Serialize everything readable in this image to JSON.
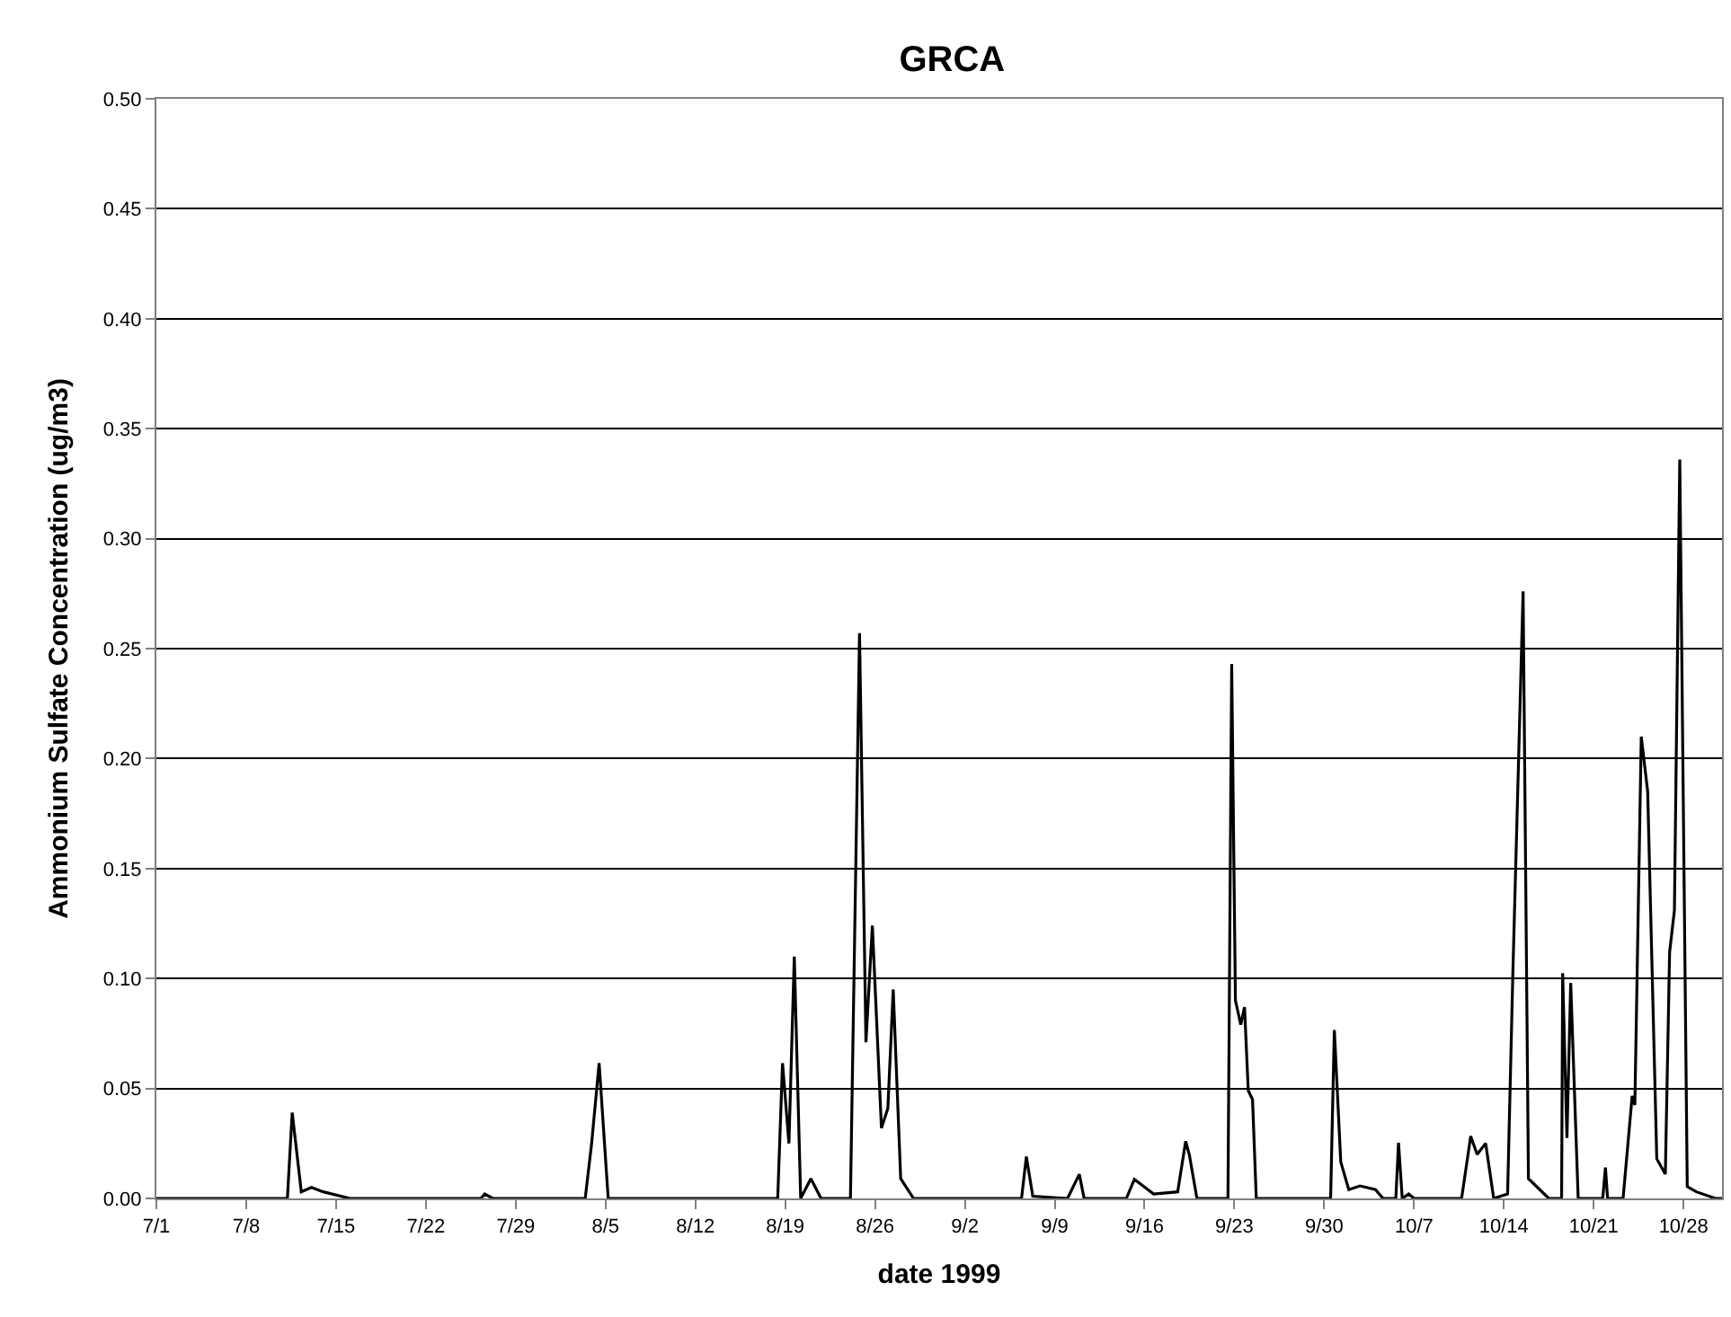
{
  "chart_data": {
    "type": "line",
    "title": "GRCA",
    "xlabel": "date 1999",
    "ylabel": "Ammonium Sulfate Concentration (ug/m3)",
    "x": [
      "1999-07-01T00:00",
      "1999-07-11T05:00",
      "1999-07-11T14:00",
      "1999-07-12T07:00",
      "1999-07-13T02:00",
      "1999-07-14T00:00",
      "1999-07-16T02:00",
      "1999-07-26T07:00",
      "1999-07-26T14:00",
      "1999-07-27T05:00",
      "1999-08-03T10:00",
      "1999-08-03T22:00",
      "1999-08-04T12:00",
      "1999-08-05T05:00",
      "1999-08-18T10:00",
      "1999-08-18T19:00",
      "1999-08-19T07:00",
      "1999-08-19T17:00",
      "1999-08-20T05:00",
      "1999-08-21T00:00",
      "1999-08-21T19:00",
      "1999-08-24T02:00",
      "1999-08-24T19:00",
      "1999-08-25T07:00",
      "1999-08-25T19:00",
      "1999-08-26T12:00",
      "1999-08-27T00:00",
      "1999-08-27T10:00",
      "1999-08-28T00:00",
      "1999-08-29T00:00",
      "1999-09-06T10:00",
      "1999-09-06T19:00",
      "1999-09-07T07:00",
      "1999-09-10T00:00",
      "1999-09-10T22:00",
      "1999-09-11T07:00",
      "1999-09-14T14:00",
      "1999-09-15T05:00",
      "1999-09-16T17:00",
      "1999-09-18T14:00",
      "1999-09-19T05:00",
      "1999-09-19T12:00",
      "1999-09-20T02:00",
      "1999-09-22T12:00",
      "1999-09-22T19:00",
      "1999-09-23T02:00",
      "1999-09-23T12:00",
      "1999-09-23T19:00",
      "1999-09-24T02:00",
      "1999-09-24T10:00",
      "1999-09-24T17:00",
      "1999-09-30T12:00",
      "1999-09-30T19:00",
      "1999-10-01T07:00",
      "1999-10-01T22:00",
      "1999-10-02T19:00",
      "1999-10-04T00:00",
      "1999-10-04T14:00",
      "1999-10-05T14:00",
      "1999-10-05T19:00",
      "1999-10-06T02:00",
      "1999-10-06T14:00",
      "1999-10-07T00:00",
      "1999-10-10T17:00",
      "1999-10-11T10:00",
      "1999-10-11T22:00",
      "1999-10-12T14:00",
      "1999-10-13T05:00",
      "1999-10-14T07:00",
      "1999-10-14T17:00",
      "1999-10-15T12:00",
      "1999-10-15T22:00",
      "1999-10-17T12:00",
      "1999-10-18T12:00",
      "1999-10-18T14:00",
      "1999-10-18T22:00",
      "1999-10-19T05:00",
      "1999-10-19T19:00",
      "1999-10-21T17:00",
      "1999-10-21T22:00",
      "1999-10-22T02:00",
      "1999-10-23T07:00",
      "1999-10-24T00:00",
      "1999-10-24T05:00",
      "1999-10-24T17:00",
      "1999-10-25T05:00",
      "1999-10-25T22:00",
      "1999-10-26T14:00",
      "1999-10-26T22:00",
      "1999-10-27T07:00",
      "1999-10-27T17:00",
      "1999-10-28T07:00",
      "1999-10-29T00:00",
      "1999-10-30T12:00",
      "1999-10-31T00:00"
    ],
    "series": [
      {
        "color": "#000000",
        "values": [
          0,
          0,
          0.039,
          0.003,
          0.005,
          0.003,
          0,
          0,
          0.002,
          0,
          0,
          0.025,
          0.0615,
          0,
          0,
          0.0615,
          0.025,
          0.11,
          0,
          0.009,
          0,
          0,
          0.257,
          0.071,
          0.124,
          0.032,
          0.041,
          0.095,
          0.009,
          0,
          0,
          0.019,
          0.001,
          0,
          0.011,
          0,
          0,
          0.0087,
          0.002,
          0.003,
          0.026,
          0.0196,
          0,
          0,
          0.243,
          0.09,
          0.079,
          0.087,
          0.049,
          0.045,
          0,
          0,
          0.0766,
          0.0166,
          0.004,
          0.0057,
          0.004,
          0,
          0,
          0.0253,
          0,
          0.002,
          0,
          0,
          0.0283,
          0.02,
          0.025,
          0,
          0.002,
          0.104,
          0.276,
          0.009,
          0,
          0,
          0.1024,
          0.0275,
          0.098,
          0,
          0,
          0.014,
          0,
          0,
          0.0466,
          0.0425,
          0.21,
          0.185,
          0.018,
          0.011,
          0.112,
          0.131,
          0.336,
          0.0054,
          0.003,
          0,
          0
        ]
      }
    ],
    "xlim": [
      "1999-07-01",
      "1999-10-31"
    ],
    "xticks": [
      {
        "value": "1999-07-01",
        "label": "7/1"
      },
      {
        "value": "1999-07-08",
        "label": "7/8"
      },
      {
        "value": "1999-07-15",
        "label": "7/15"
      },
      {
        "value": "1999-07-22",
        "label": "7/22"
      },
      {
        "value": "1999-07-29",
        "label": "7/29"
      },
      {
        "value": "1999-08-05",
        "label": "8/5"
      },
      {
        "value": "1999-08-12",
        "label": "8/12"
      },
      {
        "value": "1999-08-19",
        "label": "8/19"
      },
      {
        "value": "1999-08-26",
        "label": "8/26"
      },
      {
        "value": "1999-09-02",
        "label": "9/2"
      },
      {
        "value": "1999-09-09",
        "label": "9/9"
      },
      {
        "value": "1999-09-16",
        "label": "9/16"
      },
      {
        "value": "1999-09-23",
        "label": "9/23"
      },
      {
        "value": "1999-09-30",
        "label": "9/30"
      },
      {
        "value": "1999-10-07",
        "label": "10/7"
      },
      {
        "value": "1999-10-14",
        "label": "10/14"
      },
      {
        "value": "1999-10-21",
        "label": "10/21"
      },
      {
        "value": "1999-10-28",
        "label": "10/28"
      }
    ],
    "ylim": [
      0,
      0.5
    ],
    "yticks": [
      {
        "value": 0,
        "label": "0.00"
      },
      {
        "value": 0.05,
        "label": "0.05"
      },
      {
        "value": 0.1,
        "label": "0.10"
      },
      {
        "value": 0.15,
        "label": "0.15"
      },
      {
        "value": 0.2,
        "label": "0.20"
      },
      {
        "value": 0.25,
        "label": "0.25"
      },
      {
        "value": 0.3,
        "label": "0.30"
      },
      {
        "value": 0.35,
        "label": "0.35"
      },
      {
        "value": 0.4,
        "label": "0.40"
      },
      {
        "value": 0.45,
        "label": "0.45"
      },
      {
        "value": 0.5,
        "label": "0.50"
      }
    ],
    "grid": "y",
    "legend": false,
    "marker": "none",
    "line_style": "solid"
  }
}
